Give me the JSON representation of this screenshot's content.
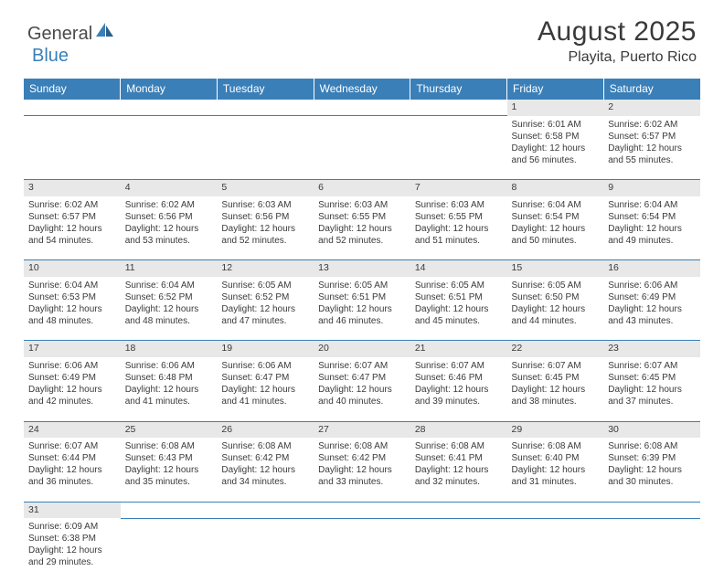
{
  "logo": {
    "text1": "General",
    "text2": "Blue"
  },
  "title": "August 2025",
  "location": "Playita, Puerto Rico",
  "colors": {
    "header_bg": "#3a7fb8",
    "header_fg": "#ffffff",
    "daynum_bg": "#e8e8e8",
    "border": "#3a7fb8",
    "text": "#3a3a3a"
  },
  "weekdays": [
    "Sunday",
    "Monday",
    "Tuesday",
    "Wednesday",
    "Thursday",
    "Friday",
    "Saturday"
  ],
  "weeks": [
    [
      null,
      null,
      null,
      null,
      null,
      {
        "n": "1",
        "sr": "Sunrise: 6:01 AM",
        "ss": "Sunset: 6:58 PM",
        "d1": "Daylight: 12 hours",
        "d2": "and 56 minutes."
      },
      {
        "n": "2",
        "sr": "Sunrise: 6:02 AM",
        "ss": "Sunset: 6:57 PM",
        "d1": "Daylight: 12 hours",
        "d2": "and 55 minutes."
      }
    ],
    [
      {
        "n": "3",
        "sr": "Sunrise: 6:02 AM",
        "ss": "Sunset: 6:57 PM",
        "d1": "Daylight: 12 hours",
        "d2": "and 54 minutes."
      },
      {
        "n": "4",
        "sr": "Sunrise: 6:02 AM",
        "ss": "Sunset: 6:56 PM",
        "d1": "Daylight: 12 hours",
        "d2": "and 53 minutes."
      },
      {
        "n": "5",
        "sr": "Sunrise: 6:03 AM",
        "ss": "Sunset: 6:56 PM",
        "d1": "Daylight: 12 hours",
        "d2": "and 52 minutes."
      },
      {
        "n": "6",
        "sr": "Sunrise: 6:03 AM",
        "ss": "Sunset: 6:55 PM",
        "d1": "Daylight: 12 hours",
        "d2": "and 52 minutes."
      },
      {
        "n": "7",
        "sr": "Sunrise: 6:03 AM",
        "ss": "Sunset: 6:55 PM",
        "d1": "Daylight: 12 hours",
        "d2": "and 51 minutes."
      },
      {
        "n": "8",
        "sr": "Sunrise: 6:04 AM",
        "ss": "Sunset: 6:54 PM",
        "d1": "Daylight: 12 hours",
        "d2": "and 50 minutes."
      },
      {
        "n": "9",
        "sr": "Sunrise: 6:04 AM",
        "ss": "Sunset: 6:54 PM",
        "d1": "Daylight: 12 hours",
        "d2": "and 49 minutes."
      }
    ],
    [
      {
        "n": "10",
        "sr": "Sunrise: 6:04 AM",
        "ss": "Sunset: 6:53 PM",
        "d1": "Daylight: 12 hours",
        "d2": "and 48 minutes."
      },
      {
        "n": "11",
        "sr": "Sunrise: 6:04 AM",
        "ss": "Sunset: 6:52 PM",
        "d1": "Daylight: 12 hours",
        "d2": "and 48 minutes."
      },
      {
        "n": "12",
        "sr": "Sunrise: 6:05 AM",
        "ss": "Sunset: 6:52 PM",
        "d1": "Daylight: 12 hours",
        "d2": "and 47 minutes."
      },
      {
        "n": "13",
        "sr": "Sunrise: 6:05 AM",
        "ss": "Sunset: 6:51 PM",
        "d1": "Daylight: 12 hours",
        "d2": "and 46 minutes."
      },
      {
        "n": "14",
        "sr": "Sunrise: 6:05 AM",
        "ss": "Sunset: 6:51 PM",
        "d1": "Daylight: 12 hours",
        "d2": "and 45 minutes."
      },
      {
        "n": "15",
        "sr": "Sunrise: 6:05 AM",
        "ss": "Sunset: 6:50 PM",
        "d1": "Daylight: 12 hours",
        "d2": "and 44 minutes."
      },
      {
        "n": "16",
        "sr": "Sunrise: 6:06 AM",
        "ss": "Sunset: 6:49 PM",
        "d1": "Daylight: 12 hours",
        "d2": "and 43 minutes."
      }
    ],
    [
      {
        "n": "17",
        "sr": "Sunrise: 6:06 AM",
        "ss": "Sunset: 6:49 PM",
        "d1": "Daylight: 12 hours",
        "d2": "and 42 minutes."
      },
      {
        "n": "18",
        "sr": "Sunrise: 6:06 AM",
        "ss": "Sunset: 6:48 PM",
        "d1": "Daylight: 12 hours",
        "d2": "and 41 minutes."
      },
      {
        "n": "19",
        "sr": "Sunrise: 6:06 AM",
        "ss": "Sunset: 6:47 PM",
        "d1": "Daylight: 12 hours",
        "d2": "and 41 minutes."
      },
      {
        "n": "20",
        "sr": "Sunrise: 6:07 AM",
        "ss": "Sunset: 6:47 PM",
        "d1": "Daylight: 12 hours",
        "d2": "and 40 minutes."
      },
      {
        "n": "21",
        "sr": "Sunrise: 6:07 AM",
        "ss": "Sunset: 6:46 PM",
        "d1": "Daylight: 12 hours",
        "d2": "and 39 minutes."
      },
      {
        "n": "22",
        "sr": "Sunrise: 6:07 AM",
        "ss": "Sunset: 6:45 PM",
        "d1": "Daylight: 12 hours",
        "d2": "and 38 minutes."
      },
      {
        "n": "23",
        "sr": "Sunrise: 6:07 AM",
        "ss": "Sunset: 6:45 PM",
        "d1": "Daylight: 12 hours",
        "d2": "and 37 minutes."
      }
    ],
    [
      {
        "n": "24",
        "sr": "Sunrise: 6:07 AM",
        "ss": "Sunset: 6:44 PM",
        "d1": "Daylight: 12 hours",
        "d2": "and 36 minutes."
      },
      {
        "n": "25",
        "sr": "Sunrise: 6:08 AM",
        "ss": "Sunset: 6:43 PM",
        "d1": "Daylight: 12 hours",
        "d2": "and 35 minutes."
      },
      {
        "n": "26",
        "sr": "Sunrise: 6:08 AM",
        "ss": "Sunset: 6:42 PM",
        "d1": "Daylight: 12 hours",
        "d2": "and 34 minutes."
      },
      {
        "n": "27",
        "sr": "Sunrise: 6:08 AM",
        "ss": "Sunset: 6:42 PM",
        "d1": "Daylight: 12 hours",
        "d2": "and 33 minutes."
      },
      {
        "n": "28",
        "sr": "Sunrise: 6:08 AM",
        "ss": "Sunset: 6:41 PM",
        "d1": "Daylight: 12 hours",
        "d2": "and 32 minutes."
      },
      {
        "n": "29",
        "sr": "Sunrise: 6:08 AM",
        "ss": "Sunset: 6:40 PM",
        "d1": "Daylight: 12 hours",
        "d2": "and 31 minutes."
      },
      {
        "n": "30",
        "sr": "Sunrise: 6:08 AM",
        "ss": "Sunset: 6:39 PM",
        "d1": "Daylight: 12 hours",
        "d2": "and 30 minutes."
      }
    ],
    [
      {
        "n": "31",
        "sr": "Sunrise: 6:09 AM",
        "ss": "Sunset: 6:38 PM",
        "d1": "Daylight: 12 hours",
        "d2": "and 29 minutes."
      },
      null,
      null,
      null,
      null,
      null,
      null
    ]
  ]
}
